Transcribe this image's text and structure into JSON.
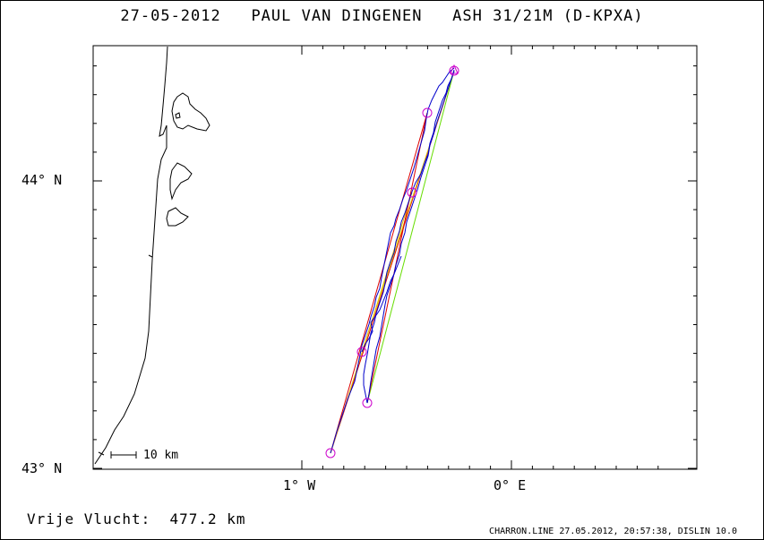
{
  "title": "27-05-2012   PAUL VAN DINGENEN   ASH 31/21M (D-KPXA)",
  "axes": {
    "y_labels": [
      "44° N",
      "43° N"
    ],
    "x_labels": [
      "1° W",
      "0° E"
    ]
  },
  "scale_bar": {
    "label": "10 km"
  },
  "distance_text": "Vrije Vlucht:  477.2 km",
  "footer": "CHARRON.LINE 27.05.2012, 20:57:38, DISLIN 10.0",
  "colors": {
    "coastline": "#000000",
    "track": "#0000cc",
    "leg_red": "#dd0000",
    "leg_yellow": "#e0c000",
    "leg_green": "#66dd00",
    "turnpoint": "#cc00cc"
  }
}
